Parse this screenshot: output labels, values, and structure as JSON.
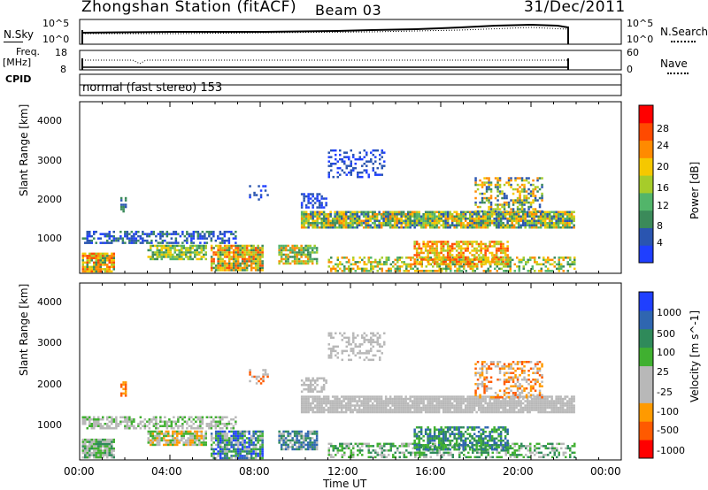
{
  "header": {
    "station": "Zhongshan Station (fitACF)",
    "beam": "Beam 03",
    "date": "31/Dec/2011"
  },
  "noise_panel": {
    "left_label": "N.Sky",
    "left_ticks": [
      "10^5",
      "10^0"
    ],
    "right_label": "N.Search",
    "right_ticks": [
      "10^5",
      "10^0"
    ]
  },
  "freq_panel": {
    "left_label_line1": "Freq.",
    "left_label_line2": "[MHz]",
    "left_ticks": [
      "18",
      "8"
    ],
    "right_label": "Nave",
    "right_ticks": [
      "60",
      "0"
    ]
  },
  "cpid": {
    "label": "CPID",
    "text": "normal (fast stereo) 153"
  },
  "colors": {
    "power": [
      "#1f3fff",
      "#2a55b0",
      "#3b8a5a",
      "#52b56a",
      "#a6cc2a",
      "#f5c800",
      "#ff8a00",
      "#ff4a00",
      "#ff0000"
    ],
    "velocity": [
      "#ff0000",
      "#ff5a00",
      "#ff9a00",
      "#b8b8b8",
      "#b8b8b8",
      "#40b030",
      "#2f8a5a",
      "#2f66b0",
      "#1f3fff"
    ]
  },
  "chart_data": [
    {
      "type": "heatmap",
      "panel": "power",
      "ylabel": "Slant Range [km]",
      "yticks": [
        "1000",
        "2000",
        "3000",
        "4000"
      ],
      "ylim": [
        180,
        4500
      ],
      "xlim": [
        0,
        24
      ],
      "colorbar_label": "Power [dB]",
      "colorbar_ticks": [
        "4",
        "8",
        "12",
        "16",
        "20",
        "24",
        "28"
      ],
      "colorbar_range": [
        0,
        32
      ]
    },
    {
      "type": "heatmap",
      "panel": "velocity",
      "ylabel": "Slant Range [km]",
      "yticks": [
        "1000",
        "2000",
        "3000",
        "4000"
      ],
      "ylim": [
        180,
        4500
      ],
      "xlim": [
        0,
        24
      ],
      "xlabel": "Time UT",
      "xticks": [
        "00:00",
        "04:00",
        "08:00",
        "12:00",
        "16:00",
        "20:00",
        "00:00"
      ],
      "colorbar_label": "Velocity [m s^-1]",
      "colorbar_ticks": [
        "1000",
        "500",
        "100",
        "25",
        "-25",
        "-100",
        "-500",
        "-1000"
      ]
    }
  ]
}
